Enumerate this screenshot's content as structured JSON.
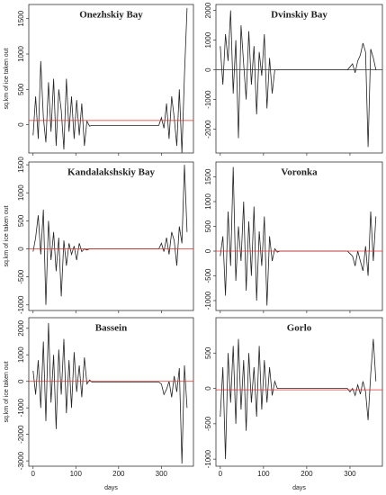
{
  "chart_data": [
    {
      "type": "line",
      "title": "Onezhskiy Bay",
      "y_label": "sq.km of ice taken out",
      "color": "#222222",
      "x": [
        0,
        6,
        12,
        18,
        24,
        30,
        36,
        42,
        48,
        54,
        60,
        66,
        72,
        78,
        84,
        90,
        96,
        102,
        108,
        114,
        120,
        126,
        132,
        138,
        144,
        150,
        156,
        162,
        168,
        174,
        180,
        186,
        192,
        198,
        204,
        210,
        216,
        222,
        228,
        234,
        240,
        246,
        252,
        258,
        264,
        270,
        276,
        282,
        288,
        294,
        300,
        306,
        312,
        318,
        324,
        330,
        336,
        342,
        348,
        354,
        360
      ],
      "values": [
        -150,
        400,
        -200,
        900,
        100,
        -250,
        600,
        -100,
        650,
        -300,
        500,
        200,
        -350,
        650,
        -100,
        400,
        -200,
        350,
        -150,
        300,
        -300,
        50,
        -20,
        -10,
        -10,
        -10,
        -10,
        -10,
        -10,
        -10,
        -10,
        -10,
        -10,
        -10,
        -10,
        -10,
        -10,
        -10,
        -10,
        -10,
        -10,
        -10,
        -10,
        -10,
        -10,
        -10,
        -10,
        -10,
        -10,
        -10,
        100,
        -50,
        300,
        -200,
        400,
        100,
        -300,
        500,
        -400,
        700,
        1650
      ],
      "xlim": [
        -10,
        375
      ],
      "ylim": [
        -400,
        1700
      ],
      "xticks": [
        0,
        100,
        200,
        300
      ],
      "yticks": [
        0,
        500,
        1000,
        1500
      ],
      "reference_line": {
        "value": 60,
        "color": "#e03030"
      }
    },
    {
      "type": "line",
      "title": "Dvinskiy Bay",
      "color": "#222222",
      "x": [
        0,
        6,
        12,
        18,
        24,
        30,
        36,
        42,
        48,
        54,
        60,
        66,
        72,
        78,
        84,
        90,
        96,
        102,
        108,
        114,
        120,
        126,
        132,
        138,
        144,
        150,
        156,
        162,
        168,
        174,
        180,
        186,
        192,
        198,
        204,
        210,
        216,
        222,
        228,
        234,
        240,
        246,
        252,
        258,
        264,
        270,
        276,
        282,
        288,
        294,
        300,
        306,
        312,
        318,
        324,
        330,
        336,
        342,
        348,
        354,
        360
      ],
      "values": [
        800,
        -500,
        1200,
        300,
        2000,
        -800,
        1000,
        -2300,
        1500,
        200,
        -1000,
        1300,
        -500,
        800,
        -1500,
        600,
        -200,
        1200,
        -1300,
        400,
        -800,
        0,
        0,
        0,
        0,
        0,
        0,
        0,
        0,
        0,
        0,
        0,
        0,
        0,
        0,
        0,
        0,
        0,
        0,
        0,
        0,
        0,
        0,
        0,
        0,
        0,
        0,
        0,
        0,
        0,
        100,
        200,
        -100,
        300,
        500,
        900,
        600,
        -2600,
        700,
        400,
        0
      ],
      "xlim": [
        -10,
        375
      ],
      "ylim": [
        -2800,
        2200
      ],
      "xticks": [
        0,
        100,
        200,
        300
      ],
      "yticks": [
        -2000,
        -1000,
        0,
        1000,
        2000
      ],
      "reference_line": {
        "value": 0,
        "color": "#333333"
      }
    },
    {
      "type": "line",
      "title": "Kandalakshskiy Bay",
      "y_label": "sq.km of ice taken out",
      "color": "#222222",
      "x": [
        0,
        6,
        12,
        18,
        24,
        30,
        36,
        42,
        48,
        54,
        60,
        66,
        72,
        78,
        84,
        90,
        96,
        102,
        108,
        114,
        120,
        126,
        132,
        138,
        144,
        150,
        156,
        162,
        168,
        174,
        180,
        186,
        192,
        198,
        204,
        210,
        216,
        222,
        228,
        234,
        240,
        246,
        252,
        258,
        264,
        270,
        276,
        282,
        288,
        294,
        300,
        306,
        312,
        318,
        324,
        330,
        336,
        342,
        348,
        354,
        360
      ],
      "values": [
        -50,
        200,
        600,
        -100,
        700,
        -1000,
        500,
        -200,
        300,
        -400,
        200,
        -850,
        150,
        -300,
        100,
        -100,
        50,
        -200,
        100,
        -50,
        0,
        -20,
        0,
        0,
        0,
        0,
        0,
        0,
        0,
        0,
        0,
        0,
        0,
        0,
        0,
        0,
        0,
        0,
        0,
        0,
        0,
        0,
        0,
        0,
        0,
        0,
        0,
        0,
        0,
        0,
        100,
        -50,
        200,
        -100,
        300,
        150,
        -300,
        400,
        100,
        1500,
        300
      ],
      "xlim": [
        -10,
        375
      ],
      "ylim": [
        -1100,
        1550
      ],
      "xticks": [
        0,
        100,
        200,
        300
      ],
      "yticks": [
        -1000,
        -500,
        0,
        500,
        1000,
        1500
      ],
      "reference_line": {
        "value": 0,
        "color": "#e03030"
      }
    },
    {
      "type": "line",
      "title": "Voronka",
      "color": "#222222",
      "x": [
        0,
        6,
        12,
        18,
        24,
        30,
        36,
        42,
        48,
        54,
        60,
        66,
        72,
        78,
        84,
        90,
        96,
        102,
        108,
        114,
        120,
        126,
        132,
        138,
        144,
        150,
        156,
        162,
        168,
        174,
        180,
        186,
        192,
        198,
        204,
        210,
        216,
        222,
        228,
        234,
        240,
        246,
        252,
        258,
        264,
        270,
        276,
        282,
        288,
        294,
        300,
        306,
        312,
        318,
        324,
        330,
        336,
        342,
        348,
        354,
        360
      ],
      "values": [
        -100,
        300,
        -900,
        800,
        -300,
        1700,
        -600,
        500,
        -200,
        1000,
        -800,
        600,
        -500,
        900,
        -1000,
        400,
        -300,
        700,
        -1100,
        300,
        -200,
        50,
        -20,
        0,
        0,
        0,
        0,
        0,
        0,
        0,
        0,
        0,
        0,
        0,
        0,
        0,
        0,
        0,
        0,
        0,
        0,
        0,
        0,
        0,
        0,
        0,
        0,
        0,
        0,
        0,
        -50,
        -100,
        -300,
        0,
        -200,
        -400,
        100,
        -500,
        800,
        -200,
        700
      ],
      "xlim": [
        -10,
        375
      ],
      "ylim": [
        -1200,
        1800
      ],
      "xticks": [
        0,
        100,
        200,
        300
      ],
      "yticks": [
        -1000,
        -500,
        0,
        500,
        1000,
        1500
      ],
      "reference_line": {
        "value": 0,
        "color": "#e03030"
      }
    },
    {
      "type": "line",
      "title": "Bassein",
      "y_label": "sq.km of ice taken out",
      "x_label": "days",
      "color": "#222222",
      "x": [
        0,
        6,
        12,
        18,
        24,
        30,
        36,
        42,
        48,
        54,
        60,
        66,
        72,
        78,
        84,
        90,
        96,
        102,
        108,
        114,
        120,
        126,
        132,
        138,
        144,
        150,
        156,
        162,
        168,
        174,
        180,
        186,
        192,
        198,
        204,
        210,
        216,
        222,
        228,
        234,
        240,
        246,
        252,
        258,
        264,
        270,
        276,
        282,
        288,
        294,
        300,
        306,
        312,
        318,
        324,
        330,
        336,
        342,
        348,
        354,
        360
      ],
      "values": [
        400,
        -500,
        800,
        -1000,
        1500,
        -1500,
        2200,
        -800,
        1000,
        -1800,
        1200,
        -500,
        1600,
        -1200,
        800,
        -1000,
        1100,
        -400,
        600,
        -600,
        900,
        -100,
        50,
        -30,
        -30,
        -30,
        -30,
        -30,
        -30,
        -30,
        -30,
        -30,
        -30,
        -30,
        -30,
        -30,
        -30,
        -30,
        -30,
        -30,
        -30,
        -30,
        -30,
        -30,
        -30,
        -30,
        -30,
        -30,
        -30,
        -30,
        -100,
        -500,
        -300,
        0,
        -600,
        200,
        -400,
        500,
        -3100,
        600,
        -1000
      ],
      "xlim": [
        -10,
        375
      ],
      "ylim": [
        -3200,
        2400
      ],
      "xticks": [
        0,
        100,
        200,
        300
      ],
      "yticks": [
        -3000,
        -2000,
        -1000,
        0,
        1000,
        2000
      ],
      "reference_line": {
        "value": 0,
        "color": "#e03030"
      }
    },
    {
      "type": "line",
      "title": "Gorlo",
      "x_label": "days",
      "color": "#222222",
      "x": [
        0,
        6,
        12,
        18,
        24,
        30,
        36,
        42,
        48,
        54,
        60,
        66,
        72,
        78,
        84,
        90,
        96,
        102,
        108,
        114,
        120,
        126,
        132,
        138,
        144,
        150,
        156,
        162,
        168,
        174,
        180,
        186,
        192,
        198,
        204,
        210,
        216,
        222,
        228,
        234,
        240,
        246,
        252,
        258,
        264,
        270,
        276,
        282,
        288,
        294,
        300,
        306,
        312,
        318,
        324,
        330,
        336,
        342,
        348,
        354,
        360
      ],
      "values": [
        -400,
        300,
        -1000,
        500,
        -200,
        600,
        -500,
        700,
        -300,
        400,
        -600,
        500,
        -200,
        300,
        -400,
        600,
        -300,
        400,
        -200,
        300,
        -100,
        100,
        0,
        0,
        0,
        0,
        0,
        0,
        0,
        0,
        0,
        0,
        0,
        0,
        0,
        0,
        0,
        0,
        0,
        0,
        0,
        0,
        0,
        0,
        0,
        0,
        0,
        0,
        0,
        0,
        -50,
        0,
        -100,
        50,
        -80,
        100,
        -50,
        -450,
        200,
        700,
        100
      ],
      "xlim": [
        -10,
        375
      ],
      "ylim": [
        -1100,
        1000
      ],
      "xticks": [
        0,
        100,
        200,
        300
      ],
      "yticks": [
        -1000,
        -500,
        0,
        500
      ],
      "reference_line": {
        "value": -20,
        "color": "#e03030"
      }
    }
  ]
}
